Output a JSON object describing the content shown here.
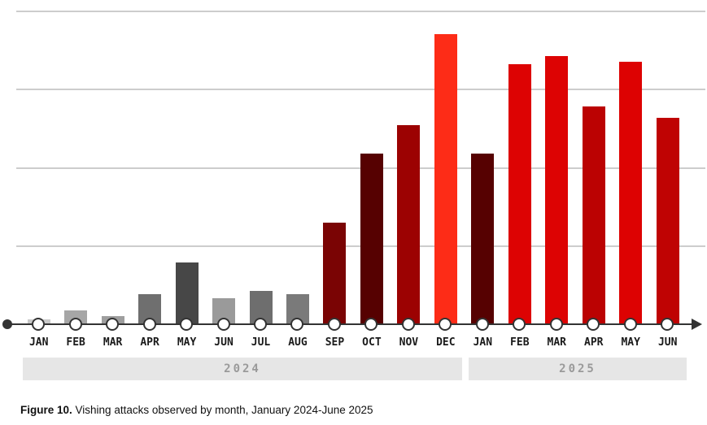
{
  "figure": {
    "caption_label": "Figure 10.",
    "caption_text": " Vishing attacks observed by month, January 2024-June 2025"
  },
  "year_bands": [
    {
      "label": "2024"
    },
    {
      "label": "2025"
    }
  ],
  "chart_data": {
    "type": "bar",
    "title": "",
    "xlabel": "",
    "ylabel": "",
    "legend": "none",
    "grid": "4 horizontal gridlines, y-axis unlabeled",
    "value_units": "relative volume, percent of plot height (top gridline = 100)",
    "ylim": [
      0,
      100
    ],
    "categories": [
      "Jan 2024",
      "Feb 2024",
      "Mar 2024",
      "Apr 2024",
      "May 2024",
      "Jun 2024",
      "Jul 2024",
      "Aug 2024",
      "Sep 2024",
      "Oct 2024",
      "Nov 2024",
      "Dec 2024",
      "Jan 2025",
      "Feb 2025",
      "Mar 2025",
      "Apr 2025",
      "May 2025",
      "Jun 2025"
    ],
    "tick_labels": [
      "JAN",
      "FEB",
      "MAR",
      "APR",
      "MAY",
      "JUN",
      "JUL",
      "AUG",
      "SEP",
      "OCT",
      "NOV",
      "DEC",
      "JAN",
      "FEB",
      "MAR",
      "APR",
      "MAY",
      "JUN"
    ],
    "series": [
      {
        "name": "Vishing attacks observed",
        "values": [
          1.6,
          4.4,
          2.6,
          9.6,
          19.7,
          8.3,
          10.6,
          9.6,
          32.5,
          54.5,
          63.6,
          92.7,
          54.5,
          83.1,
          85.7,
          69.6,
          83.9,
          66.0
        ]
      }
    ],
    "bar_colors": [
      "#c9c9c9",
      "#a6a6a6",
      "#9e9e9e",
      "#6f6f6f",
      "#474747",
      "#9a9a9a",
      "#6e6e6e",
      "#7a7a7a",
      "#7a0404",
      "#560101",
      "#9c0202",
      "#fd2c17",
      "#560101",
      "#dd0303",
      "#dd0303",
      "#bb0202",
      "#dd0202",
      "#bf0303"
    ],
    "year_groups": [
      {
        "label": "2024",
        "months": 12
      },
      {
        "label": "2025",
        "months": 6
      }
    ]
  },
  "colors": {
    "gridline": "#cdcdcd",
    "axis": "#333333",
    "month_label": "#1a1a1a",
    "year_band_bg": "#e6e6e6",
    "year_band_text": "#9a9a9a",
    "highlight_peak": "#fd2c17"
  }
}
